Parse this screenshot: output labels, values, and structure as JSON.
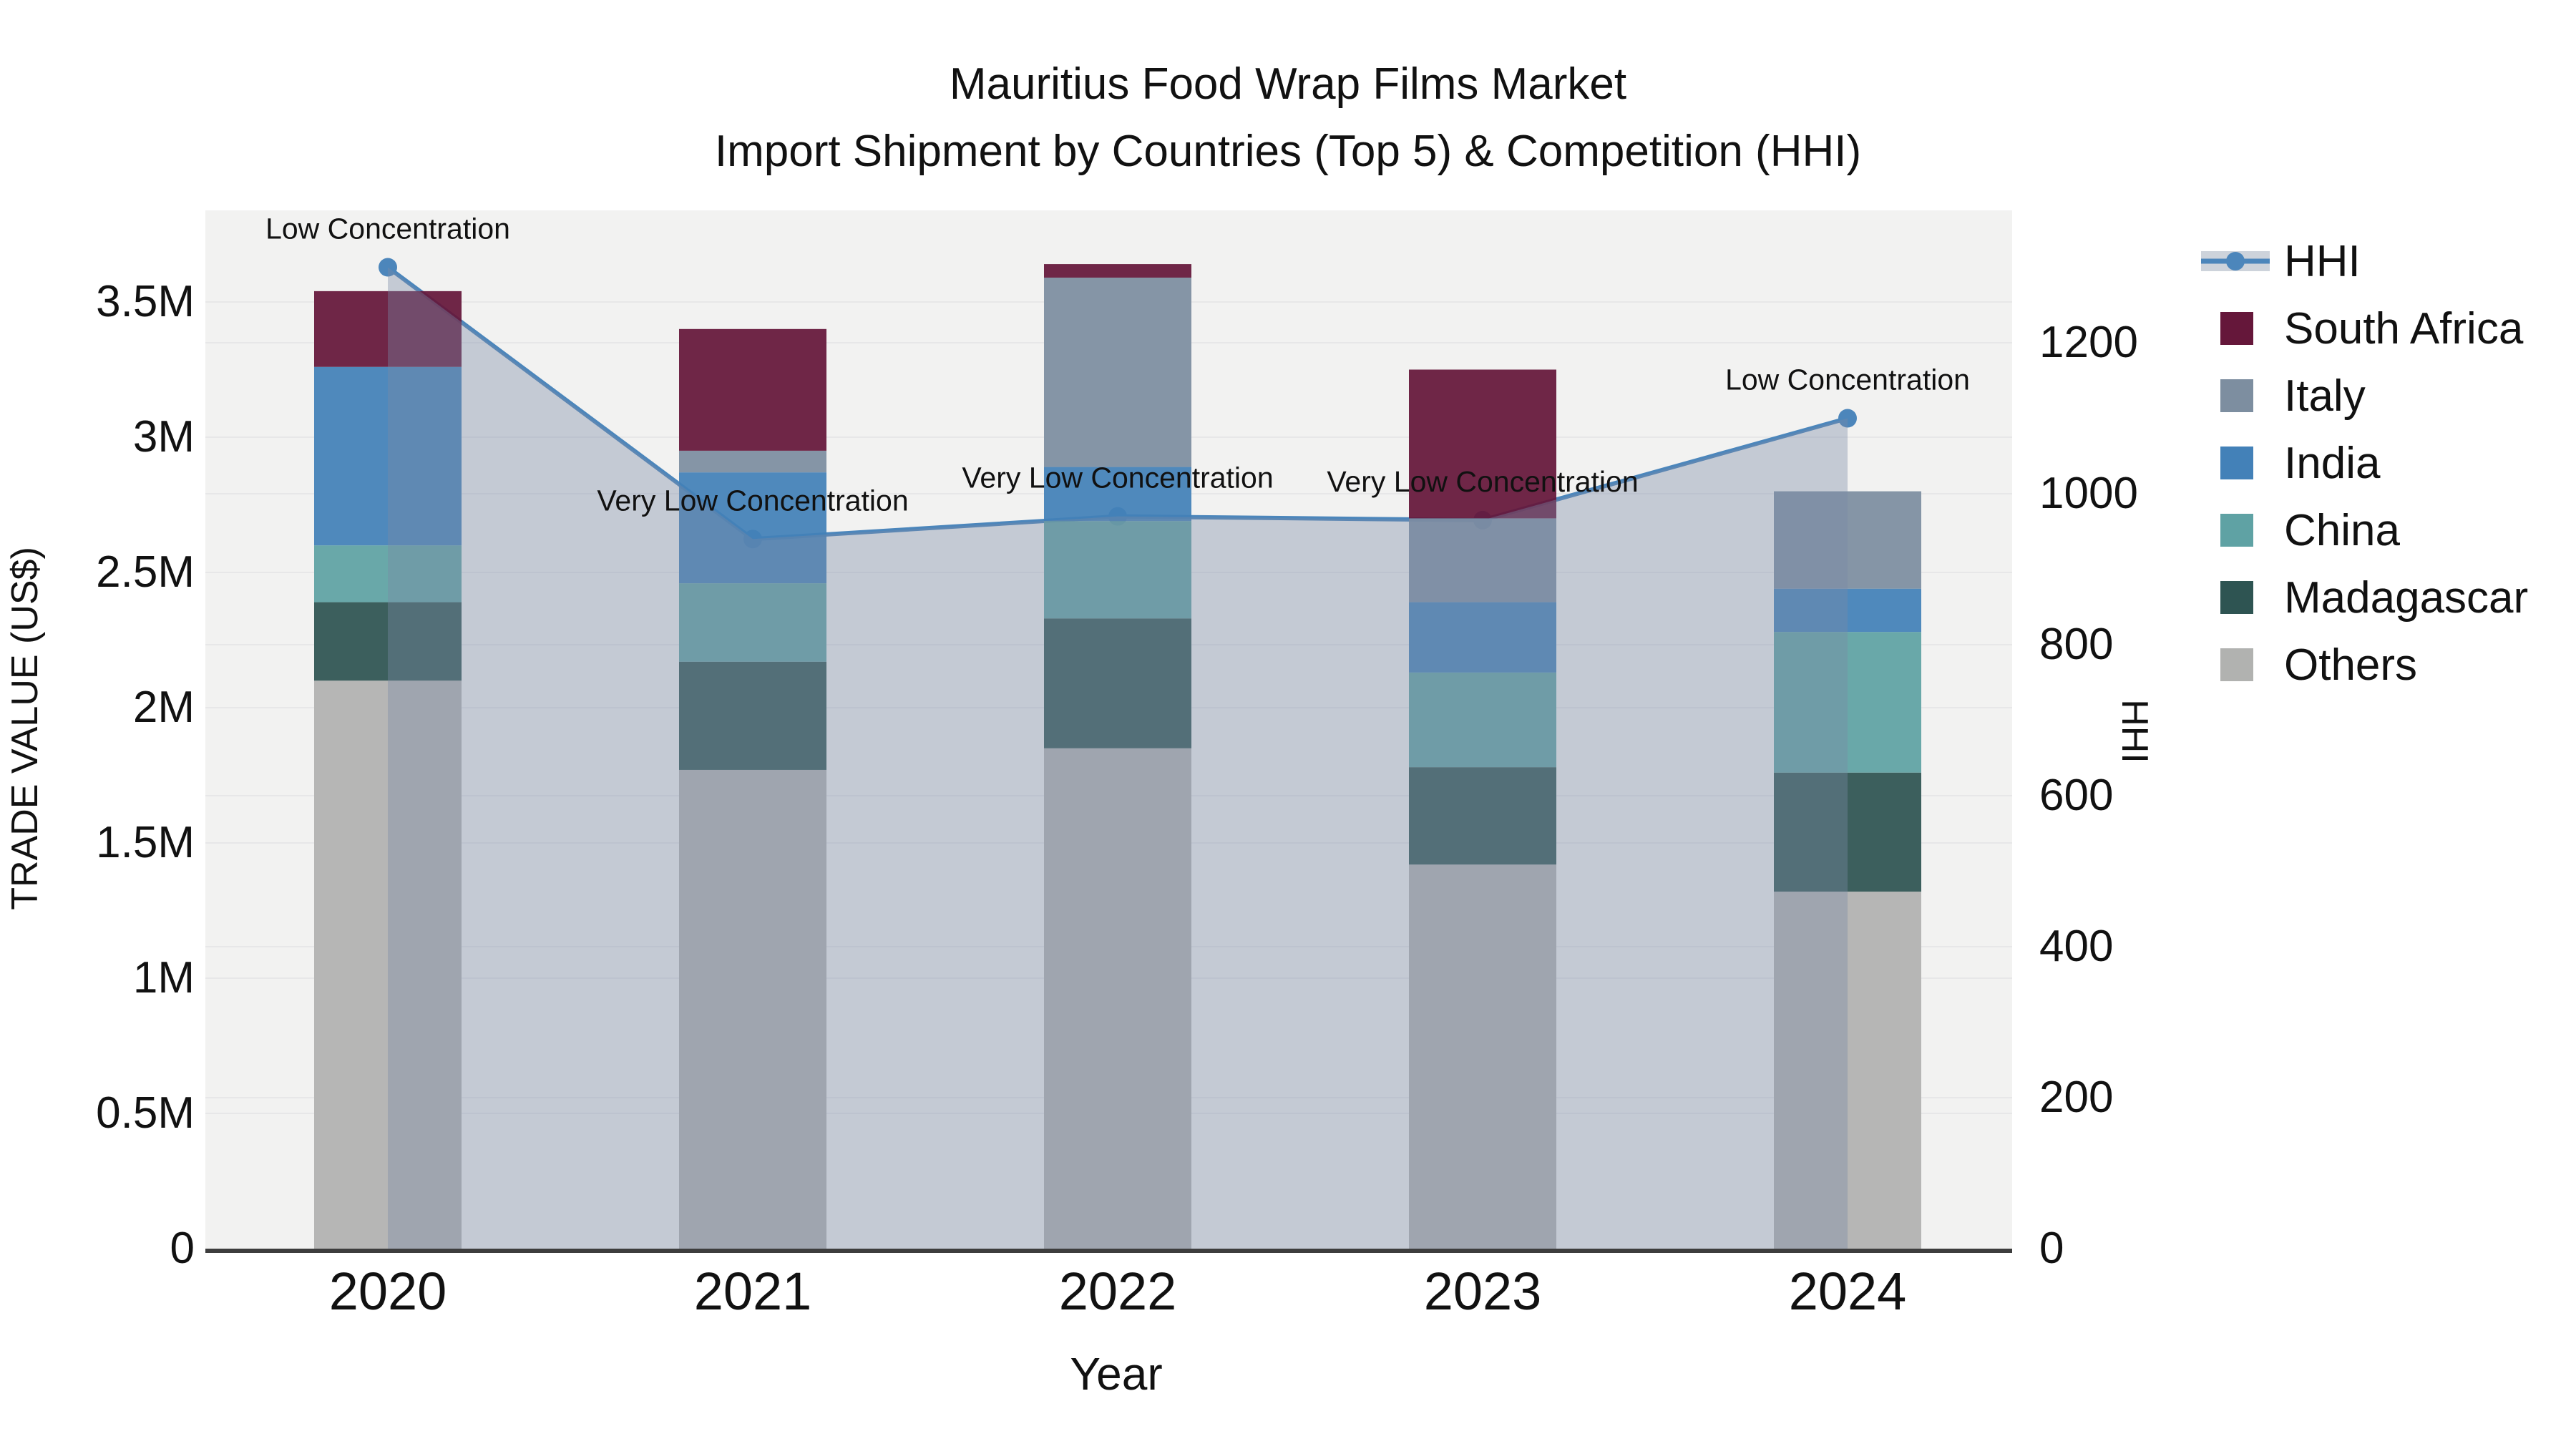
{
  "title": {
    "line1": "Mauritius Food Wrap Films Market",
    "line2": "Import Shipment by Countries (Top 5) & Competition (HHI)"
  },
  "chart_data": {
    "type": "combo: stacked bar (trade value by country) + line (HHI, secondary y-axis)",
    "categories": [
      "2020",
      "2021",
      "2022",
      "2023",
      "2024"
    ],
    "bar_unit": "US$ millions",
    "stack_order": "bottom-to-top: Others, Madagascar, China, India, Italy, South Africa",
    "bar_series": [
      {
        "name": "South Africa",
        "color": "#65173a",
        "values": [
          0.28,
          0.45,
          0.05,
          0.55,
          0
        ]
      },
      {
        "name": "Italy",
        "color": "#7d8ea0",
        "values": [
          0,
          0.08,
          0.7,
          0.31,
          0.36
        ]
      },
      {
        "name": "India",
        "color": "#4381b8",
        "values": [
          0.66,
          0.41,
          0.2,
          0.26,
          0.16
        ]
      },
      {
        "name": "China",
        "color": "#5fa2a4",
        "values": [
          0.21,
          0.29,
          0.36,
          0.35,
          0.52
        ]
      },
      {
        "name": "Madagascar",
        "color": "#2e5452",
        "values": [
          0.29,
          0.4,
          0.48,
          0.36,
          0.44
        ]
      },
      {
        "name": "Others",
        "color": "#b1b2b0",
        "values": [
          2.1,
          1.77,
          1.85,
          1.42,
          1.32
        ]
      }
    ],
    "line_series": {
      "name": "HHI",
      "color": "#4c86bb",
      "values": [
        1300,
        940,
        970,
        965,
        1100
      ]
    },
    "point_annotations": [
      "Low Concentration",
      "Very Low Concentration",
      "Very Low Concentration",
      "Very Low Concentration",
      "Low Concentration"
    ],
    "x_axis": {
      "title": "Year"
    },
    "y_left": {
      "title": "TRADE VALUE (US$)",
      "tick_labels": [
        "0",
        "0.5M",
        "1M",
        "1.5M",
        "2M",
        "2.5M",
        "3M",
        "3.5M"
      ],
      "tick_values_millions": [
        0,
        0.5,
        1,
        1.5,
        2,
        2.5,
        3,
        3.5
      ],
      "range_millions": [
        0,
        3.85
      ],
      "grid": true
    },
    "y_right": {
      "title": "HHI",
      "tick_values": [
        0,
        200,
        400,
        600,
        800,
        1000,
        1200
      ],
      "range": [
        0,
        1378
      ],
      "grid": true
    },
    "legend_position": "right",
    "legend_order": [
      "HHI",
      "South Africa",
      "Italy",
      "India",
      "China",
      "Madagascar",
      "Others"
    ]
  },
  "colors": {
    "page_bg": "#ffffff",
    "plot_bg": "#f2f2f1",
    "grid": "#e7e7e8",
    "axis_line": "#3d3d3d",
    "hhi_line": "#4c86bb",
    "hhi_area_fill": "rgba(122,138,165,0.38)",
    "legend_band": "#cdd3db",
    "text": "#111111"
  }
}
